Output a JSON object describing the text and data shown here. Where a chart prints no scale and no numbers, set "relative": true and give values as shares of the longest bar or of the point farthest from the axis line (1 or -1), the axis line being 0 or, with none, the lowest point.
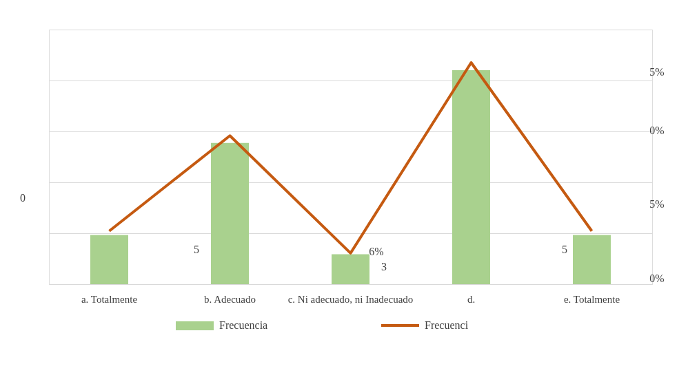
{
  "chart_data": {
    "type": "bar",
    "relative": true,
    "categories": [
      "a. Totalmente",
      "b. Adecuado",
      "c. Ni adecuado, ni Inadecuado",
      "d.",
      "e. Totalmente"
    ],
    "series": [
      {
        "name": "Frecuencia",
        "color": "#a9d18e",
        "values": [
          0.23,
          0.66,
          0.14,
          1,
          0.23
        ]
      },
      {
        "name": "Frecuenci",
        "type": "line",
        "axis": "y2",
        "color": "#c55a11",
        "values": [
          0.24,
          0.67,
          0.14,
          1,
          0.24
        ]
      }
    ],
    "annotations": [
      "0",
      "5%",
      "0%",
      "5%",
      "0%",
      "5",
      "6%",
      "3",
      "5"
    ],
    "grid": "y",
    "legend": "bottom"
  }
}
